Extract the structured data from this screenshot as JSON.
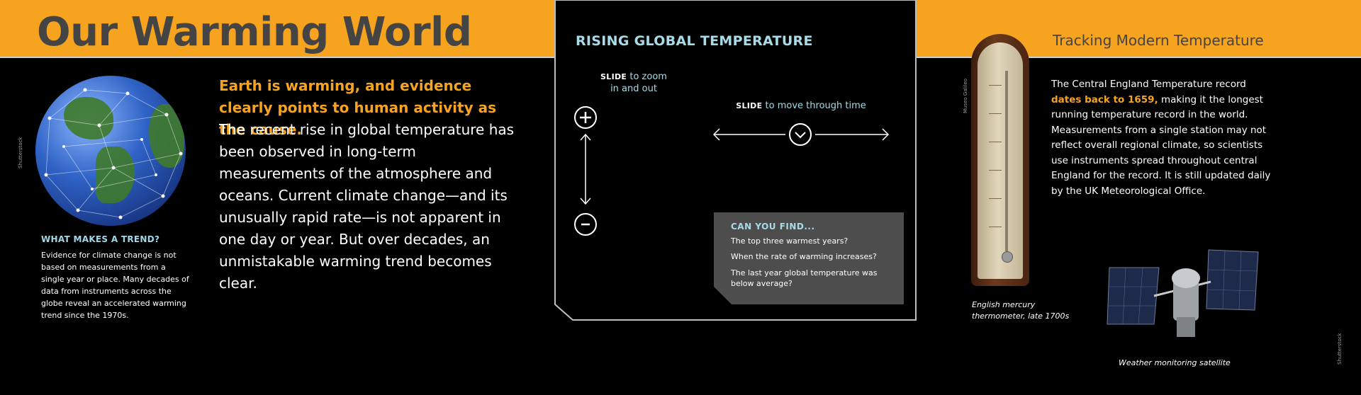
{
  "left": {
    "title": "Our Warming World",
    "globe_credit": "Shutterstock",
    "trend_heading": "WHAT MAKES A TREND?",
    "trend_text": "Evidence for climate change is not based on measurements from a single year or place. Many decades of data from instruments across the globe reveal an accelerated warming trend since the 1970s.",
    "intro_highlight": "Earth is warming, and evidence clearly points to human activity as the cause.",
    "intro_body": "The recent rise in global temperature has been observed in long-term measurements of the atmosphere and oceans. Current climate change—and its unusually rapid rate—is not apparent in one day or year. But over decades, an unmistakable warming trend becomes clear."
  },
  "center": {
    "title": "RISING GLOBAL TEMPERATURE",
    "zoom_slide_word": "SLIDE",
    "zoom_label": "to zoom in and out",
    "time_slide_word": "SLIDE",
    "time_label": "to move through time",
    "find_heading": "CAN YOU FIND...",
    "find_items": [
      "The top three warmest years?",
      "When the rate of warming increases?",
      "The last year global temperature was below average?"
    ],
    "icons": [
      "zoom-in-icon",
      "zoom-out-icon",
      "vertical-arrow-icon",
      "horizontal-arrow-icon",
      "slider-knob-icon"
    ]
  },
  "right": {
    "title": "Tracking Modern Temperature",
    "thermo_credit": "Museo Galileo",
    "body_before": "The Central England Temperature record",
    "body_highlight": "dates back to 1659,",
    "body_after": "making it the longest running temperature record in the world. Measurements from a single station may not reflect overall regional climate, so scientists use instruments spread throughout central England for the record. It is still updated daily by the UK Meteorological Office.",
    "thermo_caption": "English mercury thermometer, late 1700s",
    "satellite_caption": "Weather monitoring satellite",
    "satellite_credit": "Shutterstock"
  },
  "colors": {
    "orange": "#f6a31f",
    "light_blue": "#a8dbe8",
    "dark_gray": "#444444",
    "box_gray": "#4d4d4d"
  }
}
